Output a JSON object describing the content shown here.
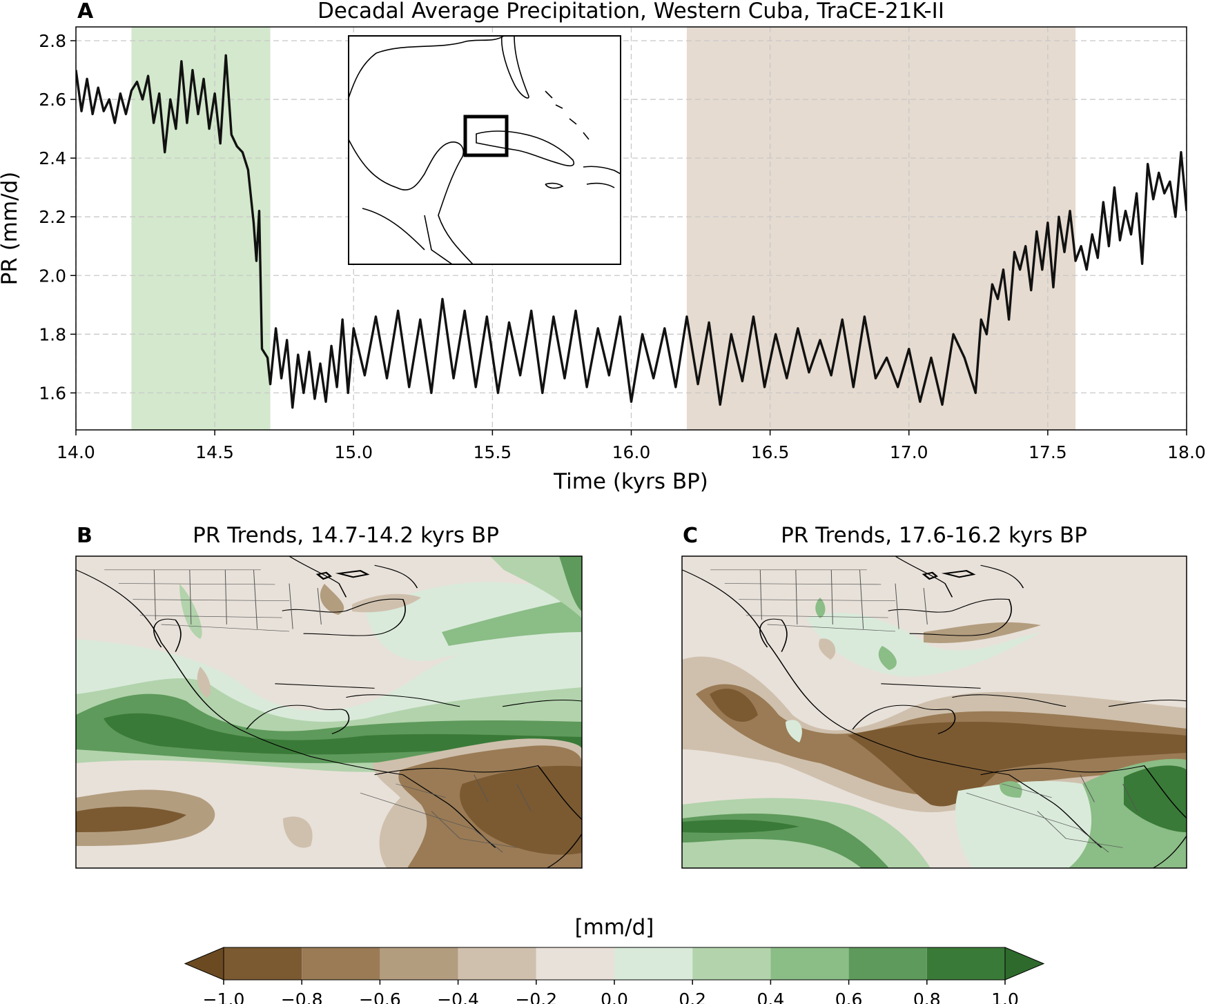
{
  "chart_data": [
    {
      "type": "line",
      "panel": "A",
      "title": "Decadal Average Precipitation, Western Cuba, TraCE-21K-II",
      "xlabel": "Time (kyrs BP)",
      "ylabel": "PR (mm/d)",
      "x": [
        14.0,
        14.02,
        14.04,
        14.06,
        14.08,
        14.1,
        14.12,
        14.14,
        14.16,
        14.18,
        14.2,
        14.22,
        14.24,
        14.26,
        14.28,
        14.3,
        14.32,
        14.34,
        14.36,
        14.38,
        14.4,
        14.42,
        14.44,
        14.46,
        14.48,
        14.5,
        14.52,
        14.54,
        14.56,
        14.58,
        14.6,
        14.62,
        14.64,
        14.65,
        14.66,
        14.67,
        14.69,
        14.7,
        14.72,
        14.74,
        14.76,
        14.78,
        14.8,
        14.82,
        14.84,
        14.86,
        14.88,
        14.9,
        14.92,
        14.94,
        14.96,
        14.98,
        15.0,
        15.04,
        15.08,
        15.12,
        15.16,
        15.2,
        15.24,
        15.28,
        15.32,
        15.36,
        15.4,
        15.44,
        15.48,
        15.52,
        15.56,
        15.6,
        15.64,
        15.68,
        15.72,
        15.76,
        15.8,
        15.84,
        15.88,
        15.92,
        15.96,
        16.0,
        16.04,
        16.08,
        16.12,
        16.16,
        16.2,
        16.24,
        16.28,
        16.32,
        16.36,
        16.4,
        16.44,
        16.48,
        16.52,
        16.56,
        16.6,
        16.64,
        16.68,
        16.72,
        16.76,
        16.8,
        16.84,
        16.88,
        16.92,
        16.96,
        17.0,
        17.04,
        17.08,
        17.12,
        17.16,
        17.2,
        17.24,
        17.26,
        17.28,
        17.3,
        17.32,
        17.34,
        17.36,
        17.38,
        17.4,
        17.42,
        17.44,
        17.46,
        17.48,
        17.5,
        17.52,
        17.54,
        17.56,
        17.58,
        17.6,
        17.62,
        17.64,
        17.66,
        17.68,
        17.7,
        17.72,
        17.74,
        17.76,
        17.78,
        17.8,
        17.82,
        17.84,
        17.86,
        17.88,
        17.9,
        17.92,
        17.94,
        17.96,
        17.98,
        18.0
      ],
      "series": [
        {
          "name": "PR",
          "color": "#111111",
          "values": [
            2.7,
            2.56,
            2.67,
            2.55,
            2.64,
            2.56,
            2.6,
            2.52,
            2.62,
            2.55,
            2.63,
            2.66,
            2.6,
            2.68,
            2.52,
            2.62,
            2.42,
            2.6,
            2.5,
            2.73,
            2.52,
            2.7,
            2.55,
            2.67,
            2.5,
            2.62,
            2.45,
            2.75,
            2.48,
            2.44,
            2.42,
            2.36,
            2.18,
            2.05,
            2.22,
            1.75,
            1.72,
            1.63,
            1.82,
            1.65,
            1.78,
            1.55,
            1.73,
            1.6,
            1.74,
            1.58,
            1.7,
            1.57,
            1.76,
            1.62,
            1.85,
            1.6,
            1.82,
            1.66,
            1.86,
            1.65,
            1.88,
            1.62,
            1.85,
            1.6,
            1.92,
            1.65,
            1.88,
            1.62,
            1.86,
            1.6,
            1.84,
            1.66,
            1.88,
            1.6,
            1.86,
            1.65,
            1.88,
            1.62,
            1.82,
            1.66,
            1.86,
            1.57,
            1.8,
            1.65,
            1.82,
            1.62,
            1.86,
            1.63,
            1.84,
            1.56,
            1.8,
            1.64,
            1.86,
            1.62,
            1.8,
            1.65,
            1.82,
            1.67,
            1.78,
            1.66,
            1.85,
            1.62,
            1.86,
            1.65,
            1.72,
            1.62,
            1.75,
            1.57,
            1.72,
            1.56,
            1.8,
            1.72,
            1.6,
            1.85,
            1.8,
            1.97,
            1.92,
            2.02,
            1.85,
            2.08,
            2.02,
            2.1,
            1.95,
            2.15,
            2.02,
            2.18,
            1.96,
            2.2,
            2.08,
            2.22,
            2.05,
            2.1,
            2.02,
            2.14,
            2.06,
            2.25,
            2.1,
            2.3,
            2.12,
            2.22,
            2.14,
            2.28,
            2.04,
            2.38,
            2.26,
            2.35,
            2.28,
            2.32,
            2.2,
            2.42,
            2.22
          ]
        }
      ],
      "xlim": [
        14,
        18
      ],
      "xticks": [
        {
          "value": 14,
          "label": "14.0"
        },
        14.5,
        {
          "value": 15,
          "label": "15.0"
        },
        15.5,
        {
          "value": 16,
          "label": "16.0"
        },
        16.5,
        {
          "value": 17,
          "label": "17.0"
        },
        17.5,
        {
          "value": 18,
          "label": "18.0"
        }
      ],
      "ylim": [
        1.474,
        2.847
      ],
      "yticks": [
        1.6,
        1.8,
        {
          "value": 2,
          "label": "2.0"
        },
        2.2,
        2.4,
        2.6,
        2.8
      ],
      "grid": true,
      "shaded_regions": [
        {
          "start": 14.2,
          "end": 14.7,
          "color": "#d3e8cc"
        },
        {
          "start": 16.2,
          "end": 17.6,
          "color": "#e6dbd0"
        }
      ]
    },
    {
      "type": "map",
      "panel": "B",
      "title": "PR Trends, 14.7-14.2 kyrs BP"
    },
    {
      "type": "map",
      "panel": "C",
      "title": "PR Trends, 17.6-16.2 kyrs BP"
    },
    {
      "type": "colorbar",
      "label": "[mm/d]",
      "lim": [
        -1,
        1
      ],
      "ticks": [
        {
          "value": -1,
          "label": "−1.0"
        },
        {
          "value": -0.8,
          "label": "−0.8"
        },
        {
          "value": -0.6,
          "label": "−0.6"
        },
        {
          "value": -0.4,
          "label": "−0.4"
        },
        {
          "value": -0.2,
          "label": "−0.2"
        },
        {
          "value": 0,
          "label": "0.0"
        },
        0.2,
        0.4,
        0.6,
        0.8,
        {
          "value": 1,
          "label": "1.0"
        }
      ],
      "colors": [
        "#7b5a32",
        "#9a7b55",
        "#b39d7f",
        "#cfc0ad",
        "#e8e1d9",
        "#d9eada",
        "#b2d3ac",
        "#8bbd86",
        "#5e9a5b",
        "#3a7a38"
      ],
      "under_color": "#6b4a22",
      "over_color": "#2e6a2c"
    }
  ]
}
